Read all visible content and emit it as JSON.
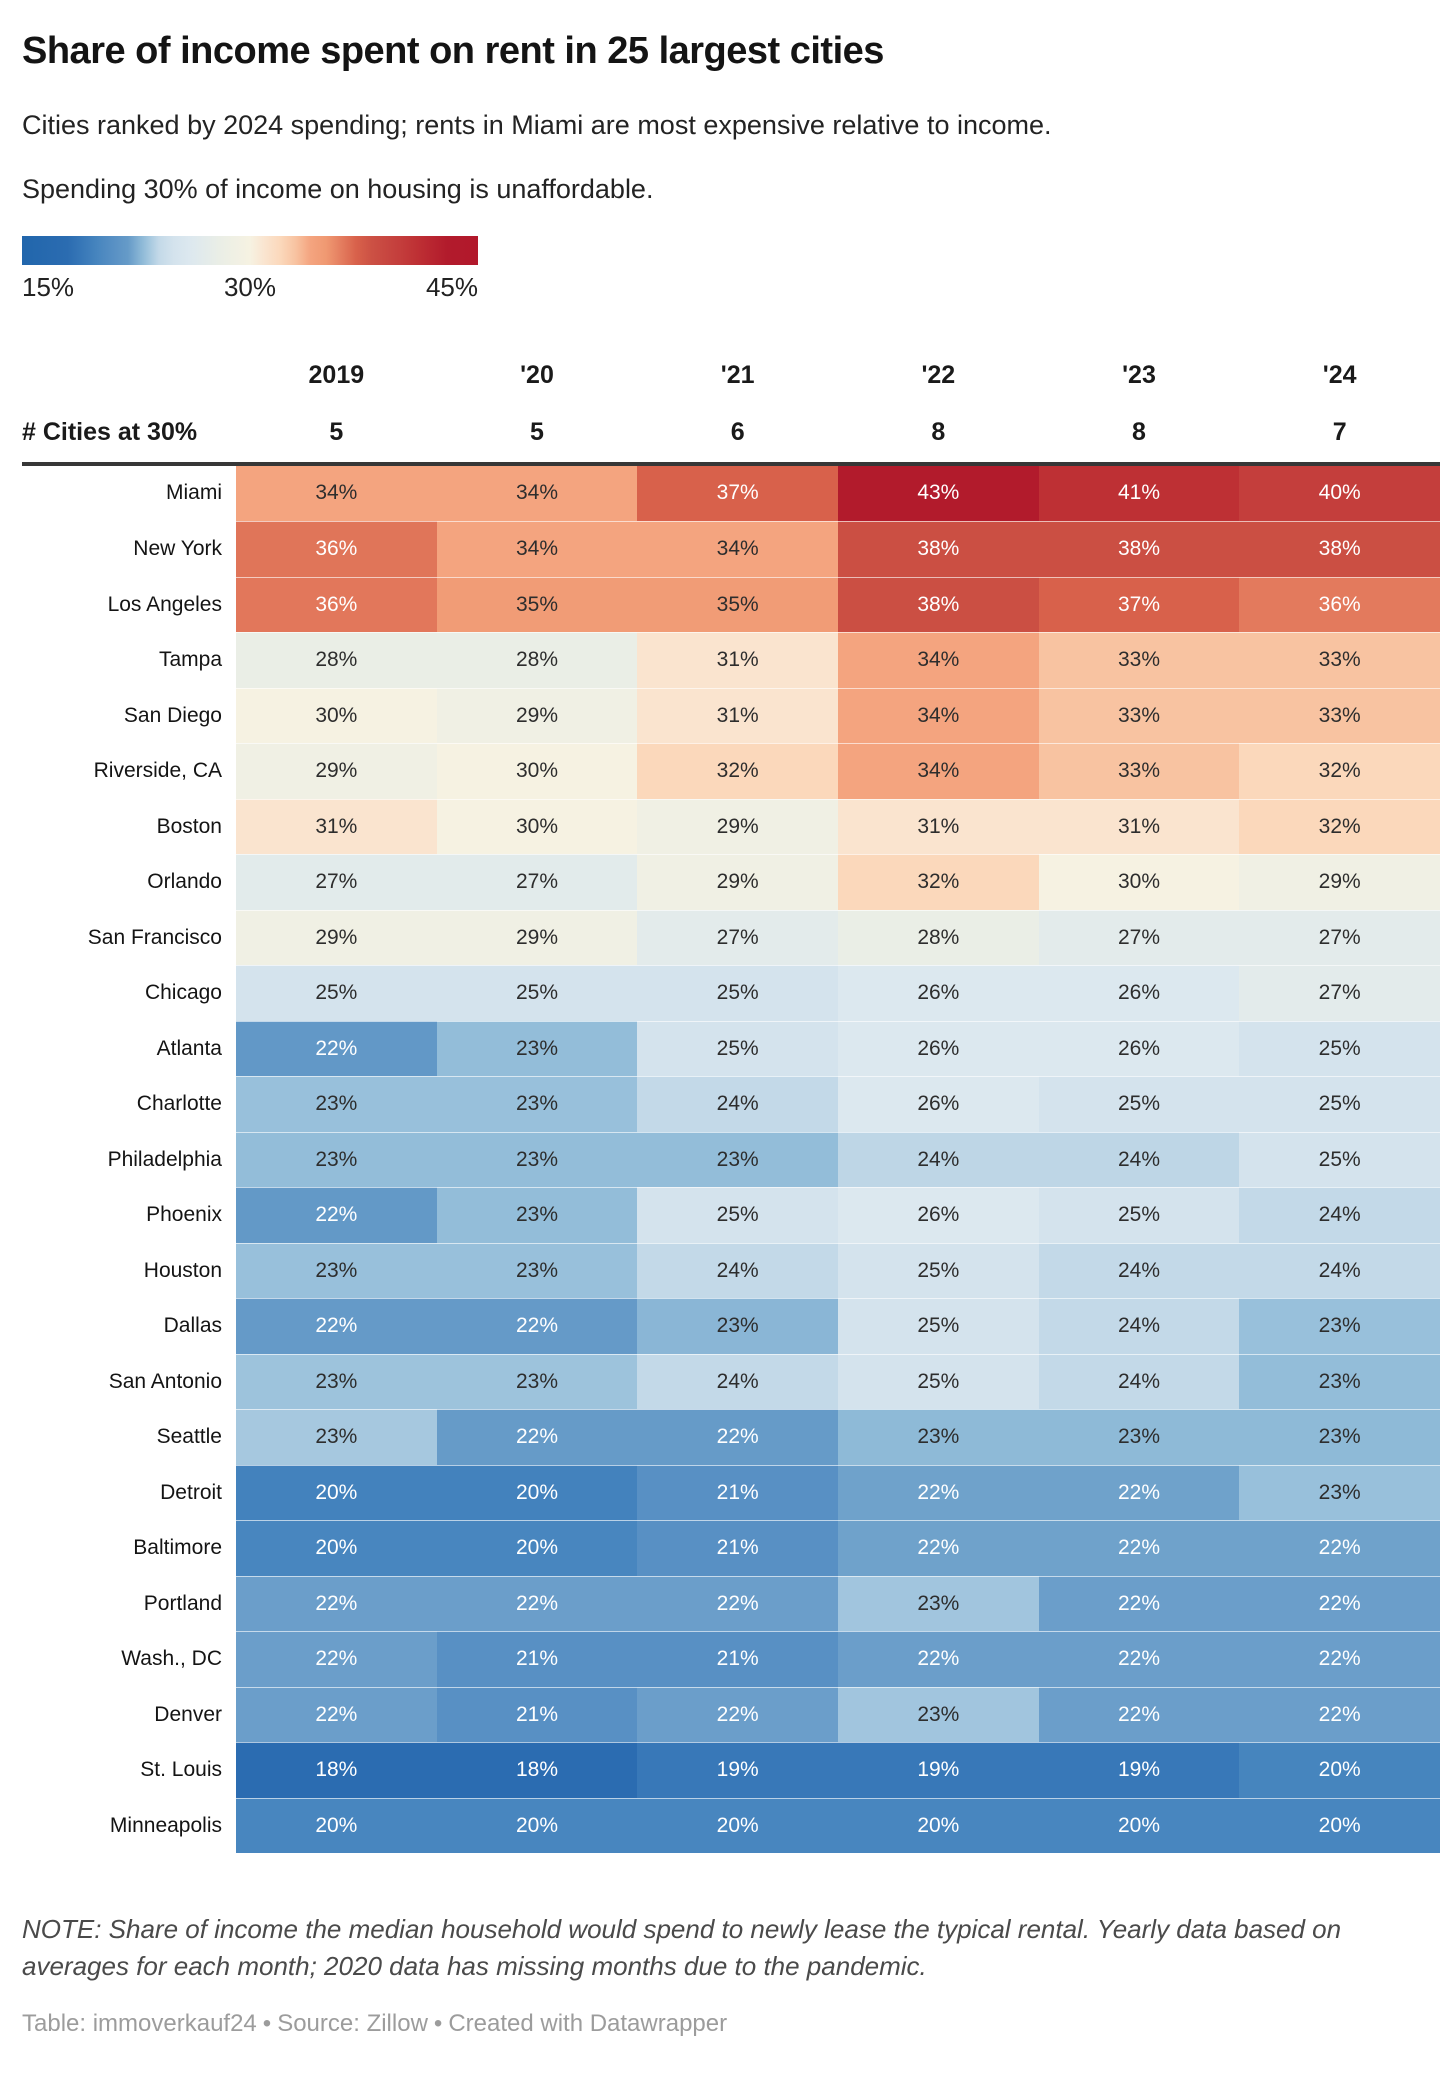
{
  "header": {
    "title": "Share of income spent on rent in 25 largest cities",
    "subtitle": "Cities ranked by 2024 spending; rents in Miami are most expensive relative to income.",
    "intro": "Spending 30% of income on housing is unaffordable."
  },
  "legend": {
    "min": 15,
    "max": 45,
    "min_label": "15%",
    "mid_label": "30%",
    "max_label": "45%",
    "stops": [
      [
        15,
        "#2166ac"
      ],
      [
        18,
        "#2b6cb1"
      ],
      [
        19,
        "#3878b8"
      ],
      [
        20,
        "#4886bf"
      ],
      [
        21,
        "#5890c4"
      ],
      [
        22,
        "#669bc8"
      ],
      [
        23,
        "#93bdd9"
      ],
      [
        24,
        "#c3d9e8"
      ],
      [
        25,
        "#d4e3ed"
      ],
      [
        26,
        "#dce8ef"
      ],
      [
        27,
        "#e3ebeb"
      ],
      [
        28,
        "#eaeee6"
      ],
      [
        29,
        "#f0f0e4"
      ],
      [
        30,
        "#f6f2e2"
      ],
      [
        31,
        "#fae4cf"
      ],
      [
        32,
        "#fbd8bb"
      ],
      [
        33,
        "#f8c3a1"
      ],
      [
        34,
        "#f4a47f"
      ],
      [
        35,
        "#f09972"
      ],
      [
        36,
        "#e47d5f"
      ],
      [
        37,
        "#d8614b"
      ],
      [
        38,
        "#cc5144"
      ],
      [
        39,
        "#c74640"
      ],
      [
        40,
        "#c33c3b"
      ],
      [
        41,
        "#be3034"
      ],
      [
        42,
        "#b82530"
      ],
      [
        43,
        "#b21b2c"
      ],
      [
        45,
        "#b2182b"
      ]
    ],
    "text_dark": "#2d2d2d",
    "text_light": "#ffffff"
  },
  "table": {
    "year_headers": [
      "2019",
      "'20",
      "'21",
      "'22",
      "'23",
      "'24"
    ],
    "count_row_label": "# Cities at 30%",
    "counts": [
      "5",
      "5",
      "6",
      "8",
      "8",
      "7"
    ],
    "rows": [
      {
        "city": "Miami",
        "labels": [
          "34%",
          "34%",
          "37%",
          "43%",
          "41%",
          "40%"
        ],
        "shades": [
          34,
          34,
          37,
          43,
          41,
          39.8
        ],
        "white": [
          0,
          0,
          1,
          1,
          1,
          1
        ]
      },
      {
        "city": "New York",
        "labels": [
          "36%",
          "34%",
          "34%",
          "38%",
          "38%",
          "38%"
        ],
        "shades": [
          36.3,
          34,
          34,
          38.2,
          38.2,
          38.2
        ],
        "white": [
          1,
          0,
          0,
          1,
          1,
          1
        ]
      },
      {
        "city": "Los Angeles",
        "labels": [
          "36%",
          "35%",
          "35%",
          "38%",
          "37%",
          "36%"
        ],
        "shades": [
          36.2,
          34.7,
          34.7,
          38.2,
          37,
          36.1
        ],
        "white": [
          1,
          0,
          0,
          1,
          1,
          1
        ]
      },
      {
        "city": "Tampa",
        "labels": [
          "28%",
          "28%",
          "31%",
          "34%",
          "33%",
          "33%"
        ],
        "shades": [
          28,
          28,
          31,
          34,
          33,
          33
        ],
        "white": [
          0,
          0,
          0,
          0,
          0,
          0
        ]
      },
      {
        "city": "San Diego",
        "labels": [
          "30%",
          "29%",
          "31%",
          "34%",
          "33%",
          "33%"
        ],
        "shades": [
          30,
          29,
          31,
          34,
          33,
          33
        ],
        "white": [
          0,
          0,
          0,
          0,
          0,
          0
        ]
      },
      {
        "city": "Riverside, CA",
        "labels": [
          "29%",
          "30%",
          "32%",
          "34%",
          "33%",
          "32%"
        ],
        "shades": [
          29,
          30,
          32,
          34,
          33,
          32
        ],
        "white": [
          0,
          0,
          0,
          0,
          0,
          0
        ]
      },
      {
        "city": "Boston",
        "labels": [
          "31%",
          "30%",
          "29%",
          "31%",
          "31%",
          "32%"
        ],
        "shades": [
          31,
          30,
          29,
          31,
          31,
          32
        ],
        "white": [
          0,
          0,
          0,
          0,
          0,
          0
        ]
      },
      {
        "city": "Orlando",
        "labels": [
          "27%",
          "27%",
          "29%",
          "32%",
          "30%",
          "29%"
        ],
        "shades": [
          26.9,
          26.9,
          29,
          32,
          30,
          29
        ],
        "white": [
          0,
          0,
          0,
          0,
          0,
          0
        ]
      },
      {
        "city": "San Francisco",
        "labels": [
          "29%",
          "29%",
          "27%",
          "28%",
          "27%",
          "27%"
        ],
        "shades": [
          29,
          29,
          27,
          28,
          27,
          27
        ],
        "white": [
          0,
          0,
          0,
          0,
          0,
          0
        ]
      },
      {
        "city": "Chicago",
        "labels": [
          "25%",
          "25%",
          "25%",
          "26%",
          "26%",
          "27%"
        ],
        "shades": [
          25,
          25,
          25,
          26,
          26,
          27
        ],
        "white": [
          0,
          0,
          0,
          0,
          0,
          0
        ]
      },
      {
        "city": "Atlanta",
        "labels": [
          "22%",
          "23%",
          "25%",
          "26%",
          "26%",
          "25%"
        ],
        "shades": [
          21.7,
          23,
          25,
          26,
          26,
          25
        ],
        "white": [
          1,
          0,
          0,
          0,
          0,
          0
        ]
      },
      {
        "city": "Charlotte",
        "labels": [
          "23%",
          "23%",
          "24%",
          "26%",
          "25%",
          "25%"
        ],
        "shades": [
          23.1,
          23.1,
          24,
          26,
          25,
          25
        ],
        "white": [
          0,
          0,
          0,
          0,
          0,
          0
        ]
      },
      {
        "city": "Philadelphia",
        "labels": [
          "23%",
          "23%",
          "23%",
          "24%",
          "24%",
          "25%"
        ],
        "shades": [
          23,
          23,
          23,
          23.9,
          23.9,
          25
        ],
        "white": [
          0,
          0,
          0,
          0,
          0,
          0
        ]
      },
      {
        "city": "Phoenix",
        "labels": [
          "22%",
          "23%",
          "25%",
          "26%",
          "25%",
          "24%"
        ],
        "shades": [
          21.8,
          23,
          25,
          26,
          25,
          24
        ],
        "white": [
          1,
          0,
          0,
          0,
          0,
          0
        ]
      },
      {
        "city": "Houston",
        "labels": [
          "23%",
          "23%",
          "24%",
          "25%",
          "24%",
          "24%"
        ],
        "shades": [
          23.1,
          23.1,
          24,
          25,
          24,
          24
        ],
        "white": [
          0,
          0,
          0,
          0,
          0,
          0
        ]
      },
      {
        "city": "Dallas",
        "labels": [
          "22%",
          "22%",
          "23%",
          "25%",
          "24%",
          "23%"
        ],
        "shades": [
          21.9,
          21.9,
          22.8,
          25,
          24,
          23.1
        ],
        "white": [
          1,
          1,
          0,
          0,
          0,
          0
        ]
      },
      {
        "city": "San Antonio",
        "labels": [
          "23%",
          "23%",
          "24%",
          "25%",
          "24%",
          "23%"
        ],
        "shades": [
          23.2,
          23.2,
          24,
          25,
          24,
          23
        ],
        "white": [
          0,
          0,
          0,
          0,
          0,
          0
        ]
      },
      {
        "city": "Seattle",
        "labels": [
          "23%",
          "22%",
          "22%",
          "23%",
          "23%",
          "23%"
        ],
        "shades": [
          23.4,
          22,
          22,
          22.9,
          22.9,
          22.9
        ],
        "white": [
          0,
          1,
          1,
          0,
          0,
          0
        ]
      },
      {
        "city": "Detroit",
        "labels": [
          "20%",
          "20%",
          "21%",
          "22%",
          "22%",
          "23%"
        ],
        "shades": [
          19.7,
          19.7,
          21,
          22.2,
          22.2,
          23.1
        ],
        "white": [
          1,
          1,
          1,
          1,
          1,
          0
        ]
      },
      {
        "city": "Baltimore",
        "labels": [
          "20%",
          "20%",
          "21%",
          "22%",
          "22%",
          "22%"
        ],
        "shades": [
          20,
          20,
          21,
          22.2,
          22.2,
          22.2
        ],
        "white": [
          1,
          1,
          1,
          1,
          1,
          1
        ]
      },
      {
        "city": "Portland",
        "labels": [
          "22%",
          "22%",
          "22%",
          "23%",
          "22%",
          "22%"
        ],
        "shades": [
          22.1,
          22.1,
          22.1,
          23.3,
          22.1,
          22.1
        ],
        "white": [
          1,
          1,
          1,
          0,
          1,
          1
        ]
      },
      {
        "city": "Wash., DC",
        "labels": [
          "22%",
          "21%",
          "21%",
          "22%",
          "22%",
          "22%"
        ],
        "shades": [
          22.1,
          21,
          21,
          22.1,
          22.1,
          22.1
        ],
        "white": [
          1,
          1,
          1,
          1,
          1,
          1
        ]
      },
      {
        "city": "Denver",
        "labels": [
          "22%",
          "21%",
          "22%",
          "23%",
          "22%",
          "22%"
        ],
        "shades": [
          22.1,
          21,
          22.1,
          23.3,
          22.1,
          22.1
        ],
        "white": [
          1,
          1,
          1,
          0,
          1,
          1
        ]
      },
      {
        "city": "St. Louis",
        "labels": [
          "18%",
          "18%",
          "19%",
          "19%",
          "19%",
          "20%"
        ],
        "shades": [
          18,
          18,
          19,
          19,
          19,
          19.9
        ],
        "white": [
          1,
          1,
          1,
          1,
          1,
          1
        ]
      },
      {
        "city": "Minneapolis",
        "labels": [
          "20%",
          "20%",
          "20%",
          "20%",
          "20%",
          "20%"
        ],
        "shades": [
          20,
          20,
          20,
          20,
          20,
          20
        ],
        "white": [
          1,
          1,
          1,
          1,
          1,
          1
        ]
      }
    ]
  },
  "footer": {
    "note": "NOTE: Share of income the median household would spend to newly lease the typical rental. Yearly data based on averages for each month; 2020 data has missing months due to the pandemic.",
    "credit_table": "Table: immoverkauf24",
    "credit_source": "Source: Zillow",
    "credit_tool": "Created with Datawrapper",
    "bullet": "•"
  },
  "chart_data": {
    "type": "heatmap",
    "title": "Share of income spent on rent in 25 largest cities",
    "subtitle": "Cities ranked by 2024 spending; rents in Miami are most expensive relative to income.",
    "annotation": "Spending 30% of income on housing is unaffordable.",
    "unit": "%",
    "columns": [
      "2019",
      "'20",
      "'21",
      "'22",
      "'23",
      "'24"
    ],
    "cities_at_30_pct": [
      5,
      5,
      6,
      8,
      8,
      7
    ],
    "color_scale": {
      "min": 15,
      "mid": 30,
      "max": 45,
      "palette": "blue-cream-red diverging",
      "min_color": "#2166ac",
      "mid_color": "#f6f2e2",
      "max_color": "#b2182b"
    },
    "rows": [
      {
        "city": "Miami",
        "values": [
          34,
          34,
          37,
          43,
          41,
          40
        ]
      },
      {
        "city": "New York",
        "values": [
          36,
          34,
          34,
          38,
          38,
          38
        ]
      },
      {
        "city": "Los Angeles",
        "values": [
          36,
          35,
          35,
          38,
          37,
          36
        ]
      },
      {
        "city": "Tampa",
        "values": [
          28,
          28,
          31,
          34,
          33,
          33
        ]
      },
      {
        "city": "San Diego",
        "values": [
          30,
          29,
          31,
          34,
          33,
          33
        ]
      },
      {
        "city": "Riverside, CA",
        "values": [
          29,
          30,
          32,
          34,
          33,
          32
        ]
      },
      {
        "city": "Boston",
        "values": [
          31,
          30,
          29,
          31,
          31,
          32
        ]
      },
      {
        "city": "Orlando",
        "values": [
          27,
          27,
          29,
          32,
          30,
          29
        ]
      },
      {
        "city": "San Francisco",
        "values": [
          29,
          29,
          27,
          28,
          27,
          27
        ]
      },
      {
        "city": "Chicago",
        "values": [
          25,
          25,
          25,
          26,
          26,
          27
        ]
      },
      {
        "city": "Atlanta",
        "values": [
          22,
          23,
          25,
          26,
          26,
          25
        ]
      },
      {
        "city": "Charlotte",
        "values": [
          23,
          23,
          24,
          26,
          25,
          25
        ]
      },
      {
        "city": "Philadelphia",
        "values": [
          23,
          23,
          23,
          24,
          24,
          25
        ]
      },
      {
        "city": "Phoenix",
        "values": [
          22,
          23,
          25,
          26,
          25,
          24
        ]
      },
      {
        "city": "Houston",
        "values": [
          23,
          23,
          24,
          25,
          24,
          24
        ]
      },
      {
        "city": "Dallas",
        "values": [
          22,
          22,
          23,
          25,
          24,
          23
        ]
      },
      {
        "city": "San Antonio",
        "values": [
          23,
          23,
          24,
          25,
          24,
          23
        ]
      },
      {
        "city": "Seattle",
        "values": [
          23,
          22,
          22,
          23,
          23,
          23
        ]
      },
      {
        "city": "Detroit",
        "values": [
          20,
          20,
          21,
          22,
          22,
          23
        ]
      },
      {
        "city": "Baltimore",
        "values": [
          20,
          20,
          21,
          22,
          22,
          22
        ]
      },
      {
        "city": "Portland",
        "values": [
          22,
          22,
          22,
          23,
          22,
          22
        ]
      },
      {
        "city": "Wash., DC",
        "values": [
          22,
          21,
          21,
          22,
          22,
          22
        ]
      },
      {
        "city": "Denver",
        "values": [
          22,
          21,
          22,
          23,
          22,
          22
        ]
      },
      {
        "city": "St. Louis",
        "values": [
          18,
          18,
          19,
          19,
          19,
          20
        ]
      },
      {
        "city": "Minneapolis",
        "values": [
          20,
          20,
          20,
          20,
          20,
          20
        ]
      }
    ]
  }
}
